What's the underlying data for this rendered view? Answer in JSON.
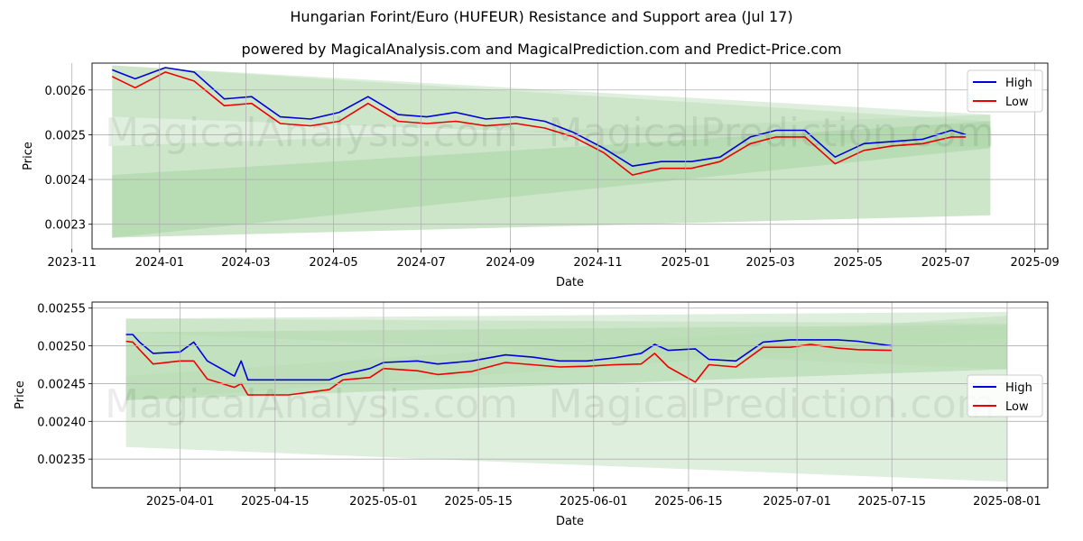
{
  "title": "Hungarian Forint/Euro (HUFEUR) Resistance and Support area (Jul 17)",
  "subtitle": "powered by MagicalAnalysis.com and MagicalPrediction.com and Predict-Price.com",
  "watermarks": [
    "MagicalAnalysis.com",
    "MagicalPrediction.com"
  ],
  "colors": {
    "high": "#0000dd",
    "low": "#ee0000",
    "band_light": "#b9dcb4",
    "band_mid": "#9fd09a"
  },
  "chart_data": [
    {
      "type": "line",
      "xlabel": "Date",
      "ylabel": "Price",
      "x_tick_labels": [
        "2023-11",
        "2024-01",
        "2024-03",
        "2024-05",
        "2024-07",
        "2024-09",
        "2024-11",
        "2025-01",
        "2025-03",
        "2025-05",
        "2025-07",
        "2025-09"
      ],
      "y_tick_labels": [
        "0.0023",
        "0.0024",
        "0.0025",
        "0.0026"
      ],
      "ylim": [
        0.002245,
        0.00266
      ],
      "legend": {
        "position": "top-right",
        "entries": [
          "High",
          "Low"
        ]
      },
      "x": [
        "2023-11-29",
        "2023-12-15",
        "2024-01-05",
        "2024-01-25",
        "2024-02-15",
        "2024-03-05",
        "2024-03-25",
        "2024-04-15",
        "2024-05-05",
        "2024-05-25",
        "2024-06-15",
        "2024-07-05",
        "2024-07-25",
        "2024-08-15",
        "2024-09-05",
        "2024-09-25",
        "2024-10-15",
        "2024-11-05",
        "2024-11-25",
        "2024-12-15",
        "2025-01-05",
        "2025-01-25",
        "2025-02-15",
        "2025-03-05",
        "2025-03-25",
        "2025-04-15",
        "2025-05-05",
        "2025-05-25",
        "2025-06-15",
        "2025-07-05",
        "2025-07-15"
      ],
      "series": [
        {
          "name": "High",
          "values": [
            0.002645,
            0.002625,
            0.00265,
            0.00264,
            0.00258,
            0.002585,
            0.00254,
            0.002535,
            0.00255,
            0.002585,
            0.002545,
            0.00254,
            0.00255,
            0.002535,
            0.00254,
            0.00253,
            0.002505,
            0.00247,
            0.00243,
            0.00244,
            0.00244,
            0.00245,
            0.002495,
            0.00251,
            0.00251,
            0.00245,
            0.00248,
            0.002485,
            0.00249,
            0.00251,
            0.0025
          ]
        },
        {
          "name": "Low",
          "values": [
            0.00263,
            0.002605,
            0.00264,
            0.00262,
            0.002565,
            0.00257,
            0.002525,
            0.00252,
            0.00253,
            0.00257,
            0.00253,
            0.002525,
            0.00253,
            0.00252,
            0.002525,
            0.002515,
            0.002495,
            0.00246,
            0.00241,
            0.002425,
            0.002425,
            0.00244,
            0.00248,
            0.002495,
            0.002495,
            0.002435,
            0.002465,
            0.002475,
            0.00248,
            0.002495,
            0.002495
          ]
        }
      ],
      "bands": [
        {
          "name": "light-outer",
          "x": [
            "2023-11-29",
            "2025-08-01"
          ],
          "upper": [
            0.002655,
            0.002545
          ],
          "lower": [
            0.00227,
            0.00232
          ]
        },
        {
          "name": "light-upper",
          "x": [
            "2023-11-29",
            "2025-08-01"
          ],
          "upper": [
            0.002655,
            0.00253
          ],
          "lower": [
            0.00254,
            0.00247
          ]
        },
        {
          "name": "light-lower",
          "x": [
            "2023-11-29",
            "2025-08-01"
          ],
          "upper": [
            0.002475,
            0.002545
          ],
          "lower": [
            0.00227,
            0.00232
          ]
        },
        {
          "name": "mid-inner",
          "x": [
            "2023-11-29",
            "2025-08-01"
          ],
          "upper": [
            0.00241,
            0.00253
          ],
          "lower": [
            0.00227,
            0.00247
          ]
        }
      ]
    },
    {
      "type": "line",
      "xlabel": "Date",
      "ylabel": "Price",
      "x_tick_labels": [
        "2025-04-01",
        "2025-04-15",
        "2025-05-01",
        "2025-05-15",
        "2025-06-01",
        "2025-06-15",
        "2025-07-01",
        "2025-07-15",
        "2025-08-01"
      ],
      "y_tick_labels": [
        "0.00235",
        "0.00240",
        "0.00245",
        "0.00250",
        "0.00255"
      ],
      "ylim": [
        0.002312,
        0.002558
      ],
      "legend": {
        "position": "center-right",
        "entries": [
          "High",
          "Low"
        ]
      },
      "x": [
        "2025-03-24",
        "2025-03-25",
        "2025-03-26",
        "2025-03-28",
        "2025-04-01",
        "2025-04-03",
        "2025-04-05",
        "2025-04-09",
        "2025-04-10",
        "2025-04-11",
        "2025-04-17",
        "2025-04-23",
        "2025-04-25",
        "2025-04-29",
        "2025-05-01",
        "2025-05-06",
        "2025-05-09",
        "2025-05-14",
        "2025-05-19",
        "2025-05-23",
        "2025-05-27",
        "2025-05-31",
        "2025-06-04",
        "2025-06-08",
        "2025-06-10",
        "2025-06-12",
        "2025-06-16",
        "2025-06-18",
        "2025-06-22",
        "2025-06-26",
        "2025-06-30",
        "2025-07-03",
        "2025-07-07",
        "2025-07-10",
        "2025-07-15"
      ],
      "series": [
        {
          "name": "High",
          "values": [
            0.002515,
            0.002515,
            0.002505,
            0.00249,
            0.002492,
            0.002505,
            0.00248,
            0.00246,
            0.00248,
            0.002455,
            0.002455,
            0.002455,
            0.002462,
            0.00247,
            0.002478,
            0.00248,
            0.002476,
            0.00248,
            0.002488,
            0.002485,
            0.00248,
            0.00248,
            0.002484,
            0.00249,
            0.002502,
            0.002494,
            0.002496,
            0.002482,
            0.00248,
            0.002505,
            0.002508,
            0.002508,
            0.002508,
            0.002506,
            0.0025
          ]
        },
        {
          "name": "Low",
          "values": [
            0.002506,
            0.002505,
            0.002495,
            0.002476,
            0.00248,
            0.00248,
            0.002456,
            0.002445,
            0.00245,
            0.002435,
            0.002435,
            0.002442,
            0.002455,
            0.002458,
            0.00247,
            0.002467,
            0.002462,
            0.002466,
            0.002478,
            0.002475,
            0.002472,
            0.002473,
            0.002475,
            0.002476,
            0.00249,
            0.002472,
            0.002452,
            0.002475,
            0.002472,
            0.002498,
            0.002498,
            0.002502,
            0.002497,
            0.002495,
            0.002494
          ]
        }
      ],
      "bands": [
        {
          "name": "light-outer",
          "x": [
            "2025-03-24",
            "2025-08-01"
          ],
          "upper": [
            0.002536,
            0.002545
          ],
          "lower": [
            0.002366,
            0.00232
          ]
        },
        {
          "name": "mid-inner",
          "x": [
            "2025-03-24",
            "2025-08-01"
          ],
          "upper": [
            0.002518,
            0.002528
          ],
          "lower": [
            0.002428,
            0.002469
          ]
        },
        {
          "name": "light-cross-a",
          "x": [
            "2025-03-24",
            "2025-08-01"
          ],
          "upper": [
            0.002536,
            0.00253
          ],
          "lower": [
            0.002518,
            0.002469
          ]
        },
        {
          "name": "light-cross-b",
          "x": [
            "2025-03-24",
            "2025-08-01"
          ],
          "upper": [
            0.00246,
            0.00254
          ],
          "lower": [
            0.002428,
            0.00251
          ]
        }
      ]
    }
  ],
  "legend_labels": {
    "high": "High",
    "low": "Low"
  }
}
